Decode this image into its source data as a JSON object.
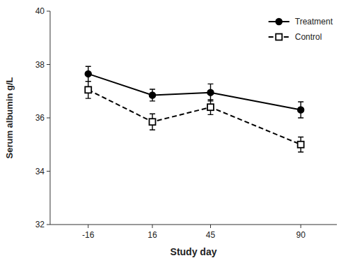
{
  "chart_data": {
    "type": "line",
    "xlabel": "Study day",
    "ylabel": "Serum albumin g/L",
    "x": [
      -16,
      16,
      45,
      90
    ],
    "xlim": [
      -35,
      108
    ],
    "xticks": [
      -16,
      16,
      45,
      90
    ],
    "ylim": [
      32,
      40
    ],
    "yticks": [
      32,
      34,
      36,
      38,
      40
    ],
    "grid": false,
    "legend": "upper right",
    "series": [
      {
        "name": "Treatment",
        "color": "#000000",
        "marker": "circle",
        "line_style": "solid",
        "values": [
          37.65,
          36.85,
          36.95,
          36.3
        ],
        "errors": [
          0.28,
          0.22,
          0.32,
          0.3
        ]
      },
      {
        "name": "Control",
        "color": "#000000",
        "marker": "open-square",
        "line_style": "dashed",
        "values": [
          37.05,
          35.85,
          36.4,
          35.0
        ],
        "errors": [
          0.32,
          0.3,
          0.28,
          0.28
        ]
      }
    ]
  }
}
